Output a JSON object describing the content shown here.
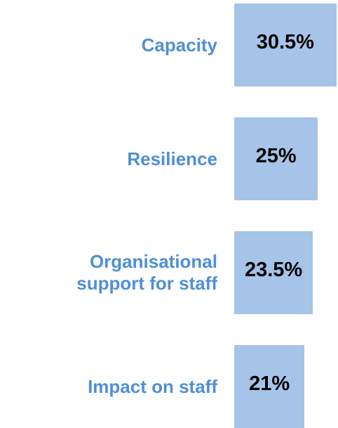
{
  "chart_data": {
    "type": "barh",
    "categories": [
      "Capacity",
      "Resilience",
      "Organisational support for staff",
      "Impact on staff"
    ],
    "values": [
      30.5,
      25,
      23.5,
      21
    ],
    "value_labels": [
      "30.5%",
      "25%",
      "23.5%",
      "21%"
    ],
    "color": "#a6c3e8",
    "xlim": [
      0,
      31
    ]
  }
}
